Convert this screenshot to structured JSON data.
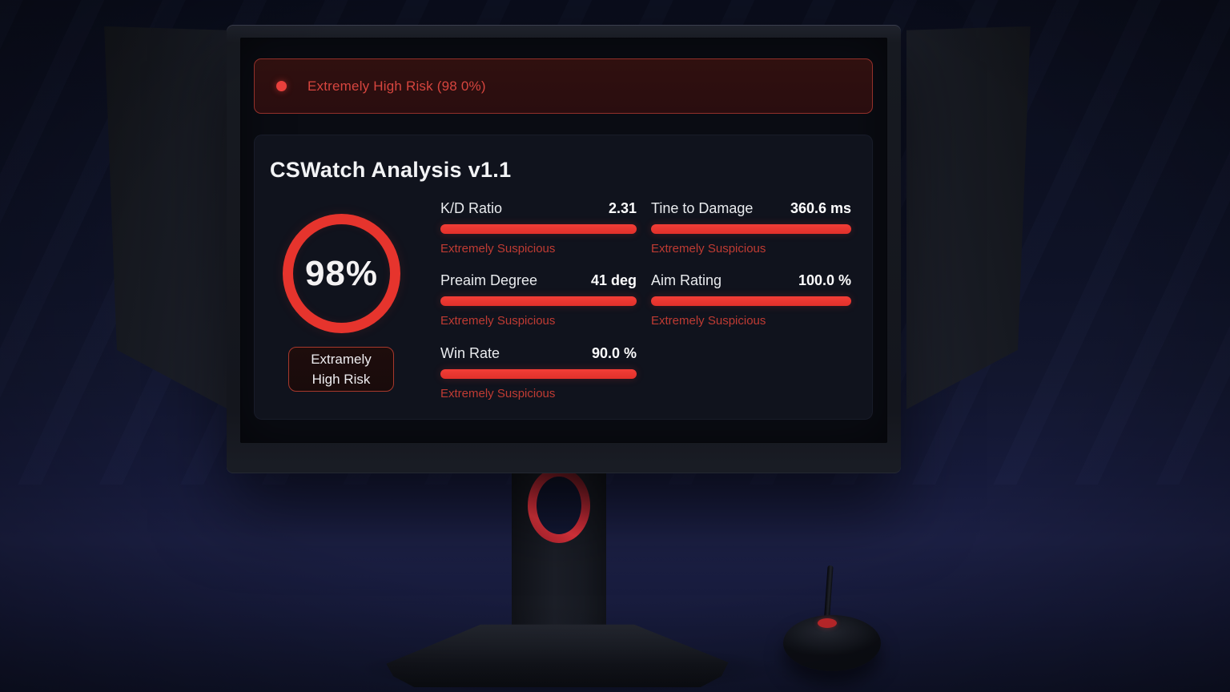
{
  "banner": {
    "text": "Extremely High Risk (98 0%)"
  },
  "analysis": {
    "title": "CSWatch Analysis v1.1",
    "gauge": {
      "value": "98%"
    },
    "risk_badge": {
      "line1": "Extramely",
      "line2": "High Risk"
    },
    "stats": [
      {
        "label": "K/D Ratio",
        "value": "2.31",
        "status": "Extremely Suspicious",
        "bar_fill": 1.0
      },
      {
        "label": "Tine to Damage",
        "value": "360.6 ms",
        "status": "Extremely Suspicious",
        "bar_fill": 1.0
      },
      {
        "label": "Preaim Degree",
        "value": "41 deg",
        "status": "Extremely Suspicious",
        "bar_fill": 1.0
      },
      {
        "label": "Aim Rating",
        "value": "100.0 %",
        "status": "Extremely Suspicious",
        "bar_fill": 1.0
      },
      {
        "label": "Win Rate",
        "value": "90.0 %",
        "status": "Extremely Suspicious",
        "bar_fill": 1.0
      }
    ]
  },
  "colors": {
    "accent_red": "#e93831",
    "status_red": "#bf3b33",
    "banner_text_red": "#d6453e",
    "banner_bg": "#2d0f10",
    "screen_bg": "#0a0c13",
    "panel_bg": "#10131d"
  }
}
